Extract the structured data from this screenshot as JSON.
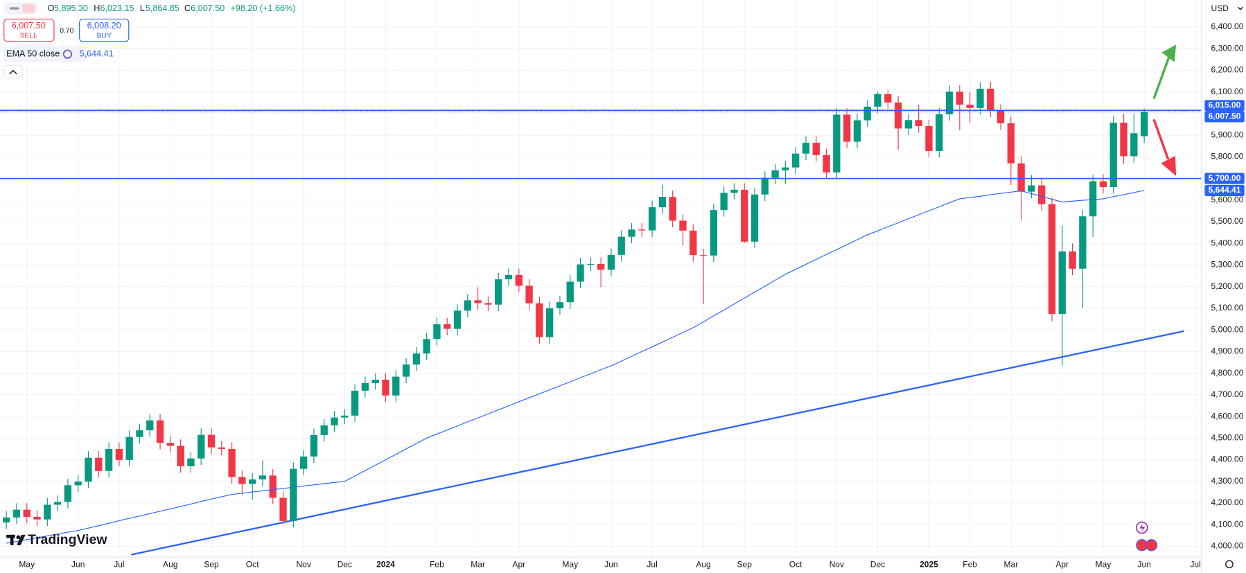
{
  "legend": {
    "o_label": "O",
    "o": "5,895.30",
    "h_label": "H",
    "h": "6,023.15",
    "l_label": "L",
    "l": "5,864.85",
    "c_label": "C",
    "c": "6,007.50",
    "change": "+98.20 (+1.66%)",
    "sell_price": "6,007.50",
    "sell_label": "SELL",
    "spread": "0.70",
    "buy_price": "6,008.20",
    "buy_label": "BUY",
    "currency": "USD",
    "brand": "TradingView"
  },
  "chart_data": {
    "type": "candlestick",
    "categories": [
      null,
      null,
      "May",
      null,
      null,
      null,
      null,
      "Jun",
      null,
      null,
      null,
      "Jul",
      null,
      null,
      null,
      null,
      "Aug",
      null,
      null,
      null,
      "Sep",
      null,
      null,
      null,
      "Oct",
      null,
      null,
      null,
      null,
      "Nov",
      null,
      null,
      null,
      "Dec",
      null,
      null,
      null,
      "2024",
      null,
      null,
      null,
      null,
      "Feb",
      null,
      null,
      null,
      "Mar",
      null,
      null,
      null,
      "Apr",
      null,
      null,
      null,
      null,
      "May",
      null,
      null,
      null,
      "Jun",
      null,
      null,
      null,
      "Jul",
      null,
      null,
      null,
      null,
      "Aug",
      null,
      null,
      null,
      "Sep",
      null,
      null,
      null,
      null,
      "Oct",
      null,
      null,
      null,
      "Nov",
      null,
      null,
      null,
      "Dec",
      null,
      null,
      null,
      null,
      "2025",
      null,
      null,
      null,
      "Feb",
      null,
      null,
      null,
      "Mar",
      null,
      null,
      null,
      null,
      "Apr",
      null,
      null,
      null,
      "May",
      null,
      null,
      null,
      "Jun",
      null,
      null,
      null,
      null,
      "Jul"
    ],
    "open": [
      4110,
      4133,
      4169,
      4136,
      4124,
      4192,
      4205,
      4282,
      4299,
      4409,
      4348,
      4450,
      4399,
      4505,
      4536,
      4582,
      4478,
      4464,
      4370,
      4406,
      4515,
      4457,
      4450,
      4320,
      4288,
      4309,
      4327,
      4224,
      4117,
      4358,
      4415,
      4514,
      4559,
      4595,
      4604,
      4719,
      4754,
      4770,
      4697,
      4784,
      4840,
      4891,
      4958,
      5026,
      5005,
      5089,
      5137,
      5124,
      5117,
      5234,
      5254,
      5204,
      5123,
      4967,
      5100,
      5128,
      5223,
      5303,
      5305,
      5278,
      5347,
      5431,
      5464,
      5460,
      5567,
      5615,
      5505,
      5459,
      5346,
      5344,
      5554,
      5634,
      5648,
      5408,
      5626,
      5703,
      5738,
      5751,
      5815,
      5865,
      5808,
      5728,
      5995,
      5870,
      5969,
      6032,
      6090,
      6051,
      5931,
      5970,
      5942,
      5827,
      5997,
      6101,
      6041,
      6026,
      6115,
      6013,
      5955,
      5770,
      5639,
      5668,
      5581,
      5074,
      5363,
      5283,
      5525,
      5687,
      5660,
      5958,
      5803,
      5895.3,
      null,
      null,
      null,
      null,
      null
    ],
    "high": [
      4163,
      4199,
      4199,
      4166,
      4222,
      4235,
      4312,
      4329,
      4439,
      4439,
      4480,
      4480,
      4535,
      4566,
      4612,
      4612,
      4508,
      4494,
      4436,
      4545,
      4545,
      4487,
      4480,
      4350,
      4339,
      4397,
      4357,
      4254,
      4388,
      4445,
      4544,
      4589,
      4625,
      4634,
      4749,
      4784,
      4800,
      4800,
      4814,
      4870,
      4921,
      4988,
      5056,
      5056,
      5119,
      5167,
      5197,
      5154,
      5264,
      5284,
      5284,
      5234,
      5153,
      5130,
      5158,
      5253,
      5333,
      5335,
      5335,
      5377,
      5461,
      5494,
      5494,
      5597,
      5670,
      5645,
      5535,
      5489,
      5376,
      5584,
      5664,
      5678,
      5678,
      5656,
      5733,
      5768,
      5781,
      5845,
      5895,
      5895,
      5838,
      6025,
      6025,
      5999,
      6062,
      6100,
      6110,
      6081,
      6000,
      6040,
      5972,
      6027,
      6131,
      6131,
      6101,
      6145,
      6147,
      6043,
      5985,
      5800,
      5715,
      5700,
      5611,
      5482,
      5400,
      5555,
      5717,
      5720,
      5988,
      6000,
      6000,
      6023.15,
      null,
      null,
      null,
      null,
      null
    ],
    "low": [
      4080,
      4103,
      4106,
      4094,
      4094,
      4162,
      4175,
      4252,
      4269,
      4318,
      4318,
      4369,
      4369,
      4475,
      4506,
      4448,
      4434,
      4340,
      4340,
      4376,
      4427,
      4420,
      4290,
      4238,
      4216,
      4279,
      4194,
      4103,
      4087,
      4328,
      4385,
      4484,
      4529,
      4565,
      4574,
      4689,
      4724,
      4667,
      4667,
      4754,
      4810,
      4861,
      4928,
      4975,
      4975,
      5059,
      5094,
      5087,
      5087,
      5204,
      5174,
      5093,
      4937,
      4937,
      5070,
      5098,
      5193,
      5273,
      5198,
      5248,
      5317,
      5401,
      5430,
      5430,
      5537,
      5475,
      5390,
      5316,
      5119,
      5314,
      5524,
      5604,
      5402,
      5378,
      5596,
      5673,
      5674,
      5721,
      5785,
      5778,
      5698,
      5698,
      5840,
      5840,
      5939,
      6002,
      6021,
      5832,
      5901,
      5912,
      5797,
      5797,
      5967,
      5923,
      5960,
      5996,
      5983,
      5925,
      5670,
      5505,
      5609,
      5551,
      5040,
      4835,
      5253,
      5101,
      5430,
      5630,
      5630,
      5767,
      5773,
      5864.85,
      null,
      null,
      null,
      null,
      null
    ],
    "close": [
      4133,
      4169,
      4136,
      4124,
      4192,
      4205,
      4282,
      4299,
      4409,
      4348,
      4450,
      4399,
      4505,
      4536,
      4582,
      4478,
      4464,
      4370,
      4406,
      4515,
      4457,
      4450,
      4320,
      4288,
      4309,
      4327,
      4224,
      4117,
      4358,
      4415,
      4514,
      4559,
      4595,
      4604,
      4719,
      4754,
      4770,
      4697,
      4784,
      4840,
      4891,
      4958,
      5026,
      5005,
      5089,
      5137,
      5124,
      5117,
      5234,
      5254,
      5204,
      5123,
      4967,
      5100,
      5128,
      5223,
      5303,
      5305,
      5278,
      5347,
      5431,
      5464,
      5460,
      5567,
      5615,
      5505,
      5459,
      5346,
      5344,
      5554,
      5634,
      5648,
      5408,
      5626,
      5703,
      5738,
      5751,
      5815,
      5865,
      5808,
      5728,
      5995,
      5870,
      5969,
      6032,
      6090,
      6051,
      5931,
      5970,
      5942,
      5827,
      5997,
      6101,
      6041,
      6026,
      6115,
      6013,
      5955,
      5770,
      5639,
      5668,
      5581,
      5074,
      5363,
      5283,
      5525,
      5687,
      5660,
      5958,
      5803,
      5909.3,
      6007.5,
      null,
      null,
      null,
      null,
      null
    ],
    "up_color": "#089981",
    "down_color": "#f23645",
    "ema": {
      "name": "EMA 50 close",
      "color": "#2962ff",
      "values": [
        4014,
        4022,
        4031,
        4039,
        4048,
        4056,
        4065,
        4073,
        4084,
        4095,
        4106,
        4118,
        4129,
        4140,
        4151,
        4162,
        4173,
        4184,
        4195,
        4207,
        4218,
        4229,
        4240,
        4245,
        4251,
        4256,
        4262,
        4267,
        4273,
        4278,
        4284,
        4289,
        4295,
        4300,
        4325,
        4350,
        4375,
        4400,
        4425,
        4450,
        4475,
        4500,
        4519,
        4537,
        4556,
        4575,
        4593,
        4612,
        4631,
        4649,
        4668,
        4686,
        4705,
        4723,
        4742,
        4760,
        4779,
        4797,
        4816,
        4834,
        4856,
        4878,
        4900,
        4922,
        4944,
        4966,
        4988,
        5010,
        5037,
        5065,
        5092,
        5120,
        5147,
        5175,
        5202,
        5230,
        5257,
        5280,
        5303,
        5326,
        5349,
        5371,
        5394,
        5417,
        5440,
        5458,
        5477,
        5495,
        5514,
        5532,
        5551,
        5569,
        5588,
        5606,
        5612,
        5618,
        5625,
        5631,
        5637,
        5643,
        5630,
        5617,
        5604,
        5591,
        5595,
        5599,
        5602,
        5606,
        5616,
        5625,
        5635,
        5644.41,
        null,
        null,
        null,
        null,
        null
      ]
    },
    "price_label_color": "#2962ff",
    "price_labels": [
      {
        "value": 6015,
        "label": "6,015.00",
        "line": "solid"
      },
      {
        "value": 6007.5,
        "label": "6,007.50",
        "line": "dotted"
      },
      {
        "value": 5700,
        "label": "5,700.00",
        "line": "solid"
      },
      {
        "value": 5644.41,
        "label": "5,644.41"
      }
    ],
    "ylim": [
      3950,
      6525
    ],
    "yticks": [
      {
        "value": 4000,
        "label": "4,000.00"
      },
      {
        "value": 4100,
        "label": "4,100.00"
      },
      {
        "value": 4200,
        "label": "4,200.00"
      },
      {
        "value": 4300,
        "label": "4,300.00"
      },
      {
        "value": 4400,
        "label": "4,400.00"
      },
      {
        "value": 4500,
        "label": "4,500.00"
      },
      {
        "value": 4600,
        "label": "4,600.00"
      },
      {
        "value": 4700,
        "label": "4,700.00"
      },
      {
        "value": 4800,
        "label": "4,800.00"
      },
      {
        "value": 4900,
        "label": "4,900.00"
      },
      {
        "value": 5000,
        "label": "5,000.00"
      },
      {
        "value": 5100,
        "label": "5,100.00"
      },
      {
        "value": 5200,
        "label": "5,200.00"
      },
      {
        "value": 5300,
        "label": "5,300.00"
      },
      {
        "value": 5400,
        "label": "5,400.00"
      },
      {
        "value": 5500,
        "label": "5,500.00"
      },
      {
        "value": 5600,
        "label": "5,600.00"
      },
      {
        "value": 5700,
        "label": "5,700.00"
      },
      {
        "value": 5800,
        "label": "5,800.00"
      },
      {
        "value": 5900,
        "label": "5,900.00"
      },
      {
        "value": 6000,
        "label": "6,000.00"
      },
      {
        "value": 6100,
        "label": "6,100.00"
      },
      {
        "value": 6200,
        "label": "6,200.00"
      },
      {
        "value": 6300,
        "label": "6,300.00"
      },
      {
        "value": 6400,
        "label": "6,400.00"
      }
    ],
    "grid": true
  }
}
